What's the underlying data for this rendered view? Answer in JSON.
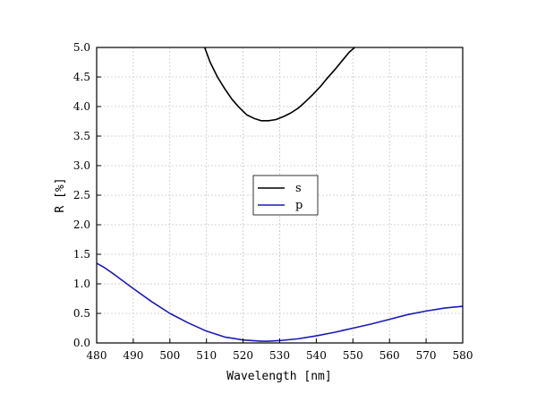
{
  "chart_data": {
    "type": "line",
    "title": "",
    "xlabel": "Wavelength [nm]",
    "ylabel": "R [%]",
    "xlim": [
      480,
      580
    ],
    "ylim": [
      0.0,
      5.0
    ],
    "xticks": [
      480,
      490,
      500,
      510,
      520,
      530,
      540,
      550,
      560,
      570,
      580
    ],
    "xtick_labels": [
      "480",
      "490",
      "500",
      "510",
      "520",
      "530",
      "540",
      "550",
      "560",
      "570",
      "580"
    ],
    "yticks": [
      0.0,
      0.5,
      1.0,
      1.5,
      2.0,
      2.5,
      3.0,
      3.5,
      4.0,
      4.5,
      5.0
    ],
    "ytick_labels": [
      "0.0",
      "0.5",
      "1.0",
      "1.5",
      "2.0",
      "2.5",
      "3.0",
      "3.5",
      "4.0",
      "4.5",
      "5.0"
    ],
    "grid": true,
    "legend_position": "center",
    "series": [
      {
        "name": "s",
        "color": "#000000",
        "x": [
          509.5,
          511,
          513,
          515,
          517,
          519,
          521,
          523,
          525,
          527,
          529,
          531,
          533,
          535,
          537,
          539,
          541,
          543,
          545,
          547,
          549,
          550.5
        ],
        "y": [
          5.0,
          4.75,
          4.5,
          4.3,
          4.12,
          3.98,
          3.86,
          3.8,
          3.76,
          3.76,
          3.78,
          3.83,
          3.89,
          3.97,
          4.08,
          4.2,
          4.33,
          4.48,
          4.62,
          4.77,
          4.92,
          5.0
        ]
      },
      {
        "name": "p",
        "color": "#1a1ab8",
        "x": [
          480,
          482,
          485,
          490,
          495,
          500,
          505,
          510,
          515,
          520,
          525,
          527,
          530,
          535,
          540,
          545,
          550,
          555,
          560,
          565,
          570,
          575,
          580
        ],
        "y": [
          1.35,
          1.28,
          1.15,
          0.92,
          0.7,
          0.5,
          0.34,
          0.2,
          0.1,
          0.05,
          0.03,
          0.03,
          0.04,
          0.07,
          0.12,
          0.18,
          0.25,
          0.32,
          0.4,
          0.48,
          0.54,
          0.59,
          0.62
        ]
      }
    ]
  }
}
